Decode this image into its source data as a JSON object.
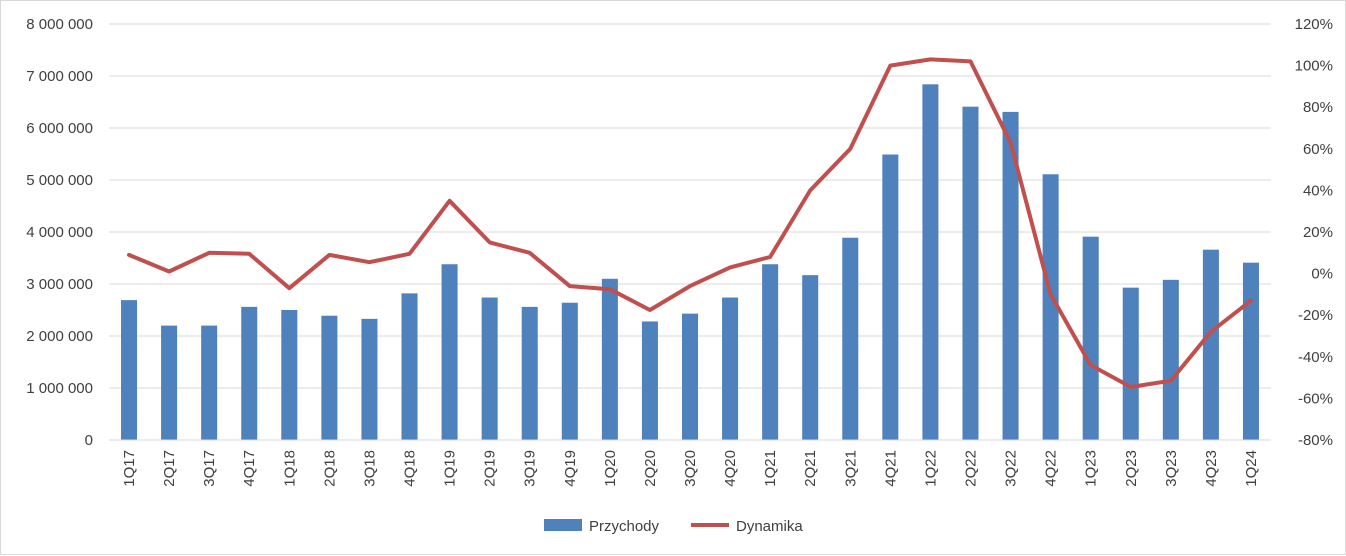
{
  "chart_data": {
    "type": "bar+line",
    "categories": [
      "1Q17",
      "2Q17",
      "3Q17",
      "4Q17",
      "1Q18",
      "2Q18",
      "3Q18",
      "4Q18",
      "1Q19",
      "2Q19",
      "3Q19",
      "4Q19",
      "1Q20",
      "2Q20",
      "3Q20",
      "4Q20",
      "1Q21",
      "2Q21",
      "3Q21",
      "4Q21",
      "1Q22",
      "2Q22",
      "3Q22",
      "4Q22",
      "1Q23",
      "2Q23",
      "3Q23",
      "4Q23",
      "1Q24"
    ],
    "series": [
      {
        "name": "Przychody",
        "type": "bar",
        "axis": "left",
        "color": "#4f81bd",
        "values": [
          2690000,
          2200000,
          2200000,
          2560000,
          2500000,
          2390000,
          2330000,
          2820000,
          3380000,
          2740000,
          2560000,
          2640000,
          3100000,
          2280000,
          2430000,
          2740000,
          3380000,
          3170000,
          3890000,
          5490000,
          6840000,
          6410000,
          6310000,
          5110000,
          3910000,
          2930000,
          3080000,
          3660000,
          3410000
        ]
      },
      {
        "name": "Dynamika",
        "type": "line",
        "axis": "right",
        "color": "#c0504d",
        "values": [
          0.09,
          0.01,
          0.1,
          0.095,
          -0.07,
          0.09,
          0.055,
          0.095,
          0.35,
          0.15,
          0.1,
          -0.06,
          -0.075,
          -0.175,
          -0.06,
          0.03,
          0.08,
          0.4,
          0.6,
          1.0,
          1.03,
          1.02,
          0.63,
          -0.1,
          -0.44,
          -0.545,
          -0.515,
          -0.28,
          -0.13
        ]
      }
    ],
    "y_left": {
      "min": 0,
      "max": 8000000,
      "ticks": [
        0,
        1000000,
        2000000,
        3000000,
        4000000,
        5000000,
        6000000,
        7000000,
        8000000
      ],
      "tick_labels": [
        "0",
        "1 000 000",
        "2 000 000",
        "3 000 000",
        "4 000 000",
        "5 000 000",
        "6 000 000",
        "7 000 000",
        "8 000 000"
      ]
    },
    "y_right": {
      "min": -0.8,
      "max": 1.2,
      "ticks": [
        -0.8,
        -0.6,
        -0.4,
        -0.2,
        0,
        0.2,
        0.4,
        0.6,
        0.8,
        1.0,
        1.2
      ],
      "tick_labels": [
        "-80%",
        "-60%",
        "-40%",
        "-20%",
        "0%",
        "20%",
        "40%",
        "60%",
        "80%",
        "100%",
        "120%"
      ]
    },
    "grid": true,
    "legend_position": "bottom",
    "legend": [
      "Przychody",
      "Dynamika"
    ]
  },
  "colors": {
    "grid": "#d9d9d9",
    "axis": "#d9d9d9",
    "text": "#404040"
  }
}
